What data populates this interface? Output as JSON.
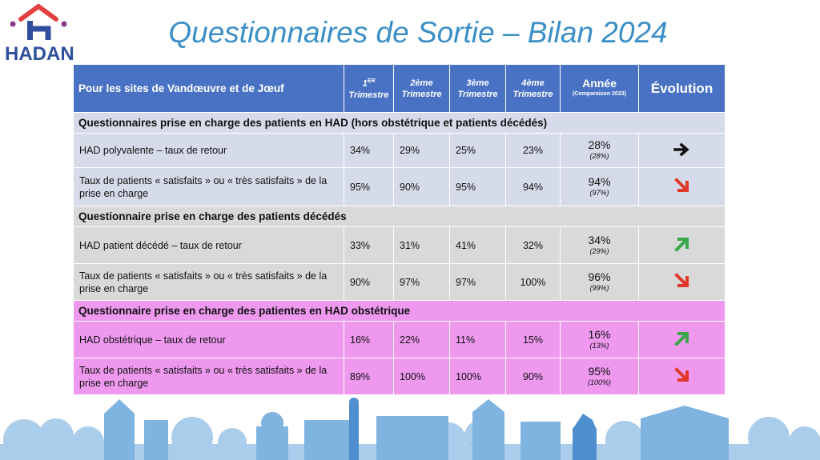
{
  "logo": {
    "text": "HADAN",
    "colors": {
      "blue": "#2f4e9e",
      "red": "#e34040",
      "purple": "#8a3a8a"
    }
  },
  "title": "Questionnaires de Sortie – Bilan 2024",
  "table": {
    "header": {
      "first": "Pour les sites de Vandœuvre et de Jœuf",
      "q1_main": "1",
      "q1_sup": "ER",
      "q1_sub": "Trimestre",
      "q2": "2ème",
      "q2_sub": "Trimestre",
      "q3": "3ème",
      "q3_sub": "Trimestre",
      "q4": "4ème",
      "q4_sub": "Trimestre",
      "year": "Année",
      "year_sub": "(Comparaison 2023)",
      "evolution": "Évolution"
    },
    "sections": [
      {
        "title": "Questionnaires prise en charge des patients en HAD  (hors obstétrique et patients décédés)",
        "rows": [
          {
            "label": "HAD polyvalente – taux de retour",
            "q1": "34%",
            "q2": "29%",
            "q3": "25%",
            "q4": "23%",
            "year": "28%",
            "prev": "(28%)",
            "trend": "stable"
          },
          {
            "label": "Taux de patients « satisfaits » ou « très satisfaits » de la prise en charge",
            "q1": "95%",
            "q2": "90%",
            "q3": "95%",
            "q4": "94%",
            "year": "94%",
            "prev": "(97%)",
            "trend": "down"
          }
        ]
      },
      {
        "title": "Questionnaire prise en charge des patients décédés",
        "rows": [
          {
            "label": "HAD patient décédé – taux de retour",
            "q1": "33%",
            "q2": "31%",
            "q3": "41%",
            "q4": "32%",
            "year": "34%",
            "prev": "(29%)",
            "trend": "up"
          },
          {
            "label": "Taux de patients « satisfaits » ou « très satisfaits » de la prise en charge",
            "q1": "90%",
            "q2": "97%",
            "q3": "97%",
            "q4": "100%",
            "year": "96%",
            "prev": "(99%)",
            "trend": "down"
          }
        ]
      },
      {
        "title": "Questionnaire prise en charge des patientes en HAD obstétrique",
        "rows": [
          {
            "label": "HAD obstétrique – taux de retour",
            "q1": "16%",
            "q2": "22%",
            "q3": "11%",
            "q4": "15%",
            "year": "16%",
            "prev": "(13%)",
            "trend": "up"
          },
          {
            "label": "Taux de patients « satisfaits » ou « très satisfaits » de la prise en charge",
            "q1": "89%",
            "q2": "100%",
            "q3": "100%",
            "q4": "90%",
            "year": "95%",
            "prev": "(100%)",
            "trend": "down"
          }
        ]
      }
    ],
    "colors": {
      "header": "#4a72c4",
      "section1": "#d6dbe9",
      "section2": "#d9d9d9",
      "section3": "#ee98ee",
      "arrow_up": "#3aa84a",
      "arrow_down": "#e0392a",
      "arrow_stable": "#111111"
    }
  }
}
